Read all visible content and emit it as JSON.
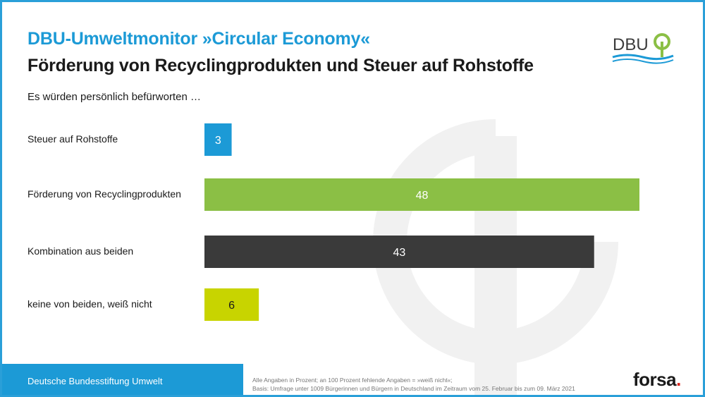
{
  "header": {
    "supertitle": "DBU-Umweltmonitor »Circular Economy«",
    "title": "Förderung von Recyclingprodukten und Steuer auf Rohstoffe",
    "subtitle": "Es würden persönlich befürworten …"
  },
  "logo": {
    "text": "DBU",
    "icon": "tree-ring-icon"
  },
  "chart_data": {
    "type": "bar",
    "orientation": "horizontal",
    "categories": [
      "Steuer auf Rohstoffe",
      "Förderung von Recyclingprodukten",
      "Kombination aus beiden",
      "keine von beiden, weiß nicht"
    ],
    "values": [
      3,
      48,
      43,
      6
    ],
    "colors": [
      "#1c9ad6",
      "#8bbf45",
      "#3a3a3a",
      "#c8d400"
    ],
    "xlim": [
      0,
      50
    ],
    "grid": false
  },
  "footer": {
    "org": "Deutsche Bundesstiftung Umwelt",
    "note_line1": "Alle Angaben in Prozent; an 100 Prozent fehlende Angaben = »weiß nicht«;",
    "note_line2": "Basis: Umfrage unter 1009 Bürgerinnen und Bürgern in Deutschland im Zeitraum vom 25. Februar bis zum 09. März 2021",
    "brand": "forsa",
    "brand_dot": "."
  },
  "colors": {
    "accent": "#1c9ad6",
    "text": "#1a1a1a",
    "brand_dot": "#d9241c"
  }
}
